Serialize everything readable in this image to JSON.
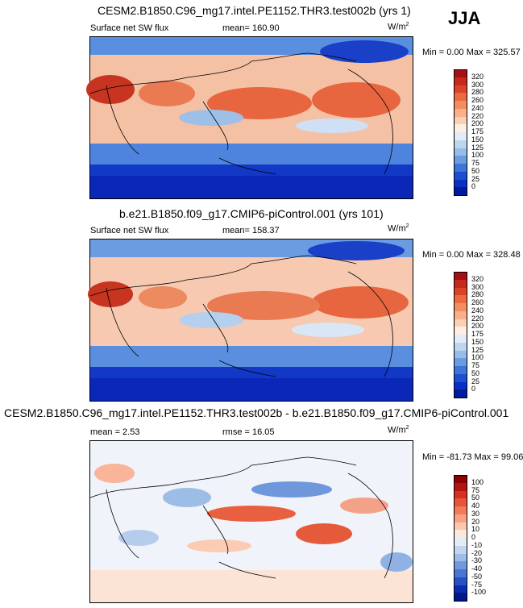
{
  "season": "JJA",
  "panels": [
    {
      "title": "CESM2.B1850.C96_mg17.intel.PE1152.THR3.test002b (yrs 1)",
      "left_label": "Surface net SW flux",
      "mid_label": "mean= 160.90",
      "units": "W/m",
      "units_sup": "2",
      "minmax": "Min =   0.00 Max = 325.57"
    },
    {
      "title": "b.e21.B1850.f09_g17.CMIP6-piControl.001 (yrs 101)",
      "left_label": "Surface net SW flux",
      "mid_label": "mean= 158.37",
      "units": "W/m",
      "units_sup": "2",
      "minmax": "Min =   0.00 Max = 328.48"
    },
    {
      "title": "CESM2.B1850.C96_mg17.intel.PE1152.THR3.test002b - b.e21.B1850.f09_g17.CMIP6-piControl.001",
      "left_label": "mean =  2.53",
      "mid_label": "rmse =  16.05",
      "units": "W/m",
      "units_sup": "2",
      "minmax": "Min = -81.73 Max =  99.06"
    }
  ],
  "colorbars": [
    {
      "labels": [
        "320",
        "300",
        "280",
        "260",
        "240",
        "220",
        "200",
        "175",
        "150",
        "125",
        "100",
        "75",
        "50",
        "25",
        "0"
      ],
      "colors": [
        "#a50f15",
        "#c62a1c",
        "#dc4428",
        "#ec6a3f",
        "#f48e5e",
        "#f9b08c",
        "#fbcfb4",
        "#fdeee2",
        "#e1ecf8",
        "#bcd6f0",
        "#95bde7",
        "#6b9be0",
        "#3d75d8",
        "#1e4fd1",
        "#0a2fc4",
        "#001a9f"
      ]
    },
    {
      "labels": [
        "100",
        "75",
        "50",
        "40",
        "30",
        "20",
        "10",
        "0",
        "-10",
        "-20",
        "-30",
        "-40",
        "-50",
        "-75",
        "-100"
      ],
      "colors": [
        "#8b0000",
        "#b41413",
        "#d7301f",
        "#e8543a",
        "#f4795a",
        "#f9a283",
        "#fcc7ae",
        "#fde9dc",
        "#e3ecf7",
        "#c3d6ef",
        "#9cbde5",
        "#7199dc",
        "#4876d2",
        "#2451c6",
        "#0b2cb0",
        "#00168c"
      ]
    }
  ]
}
